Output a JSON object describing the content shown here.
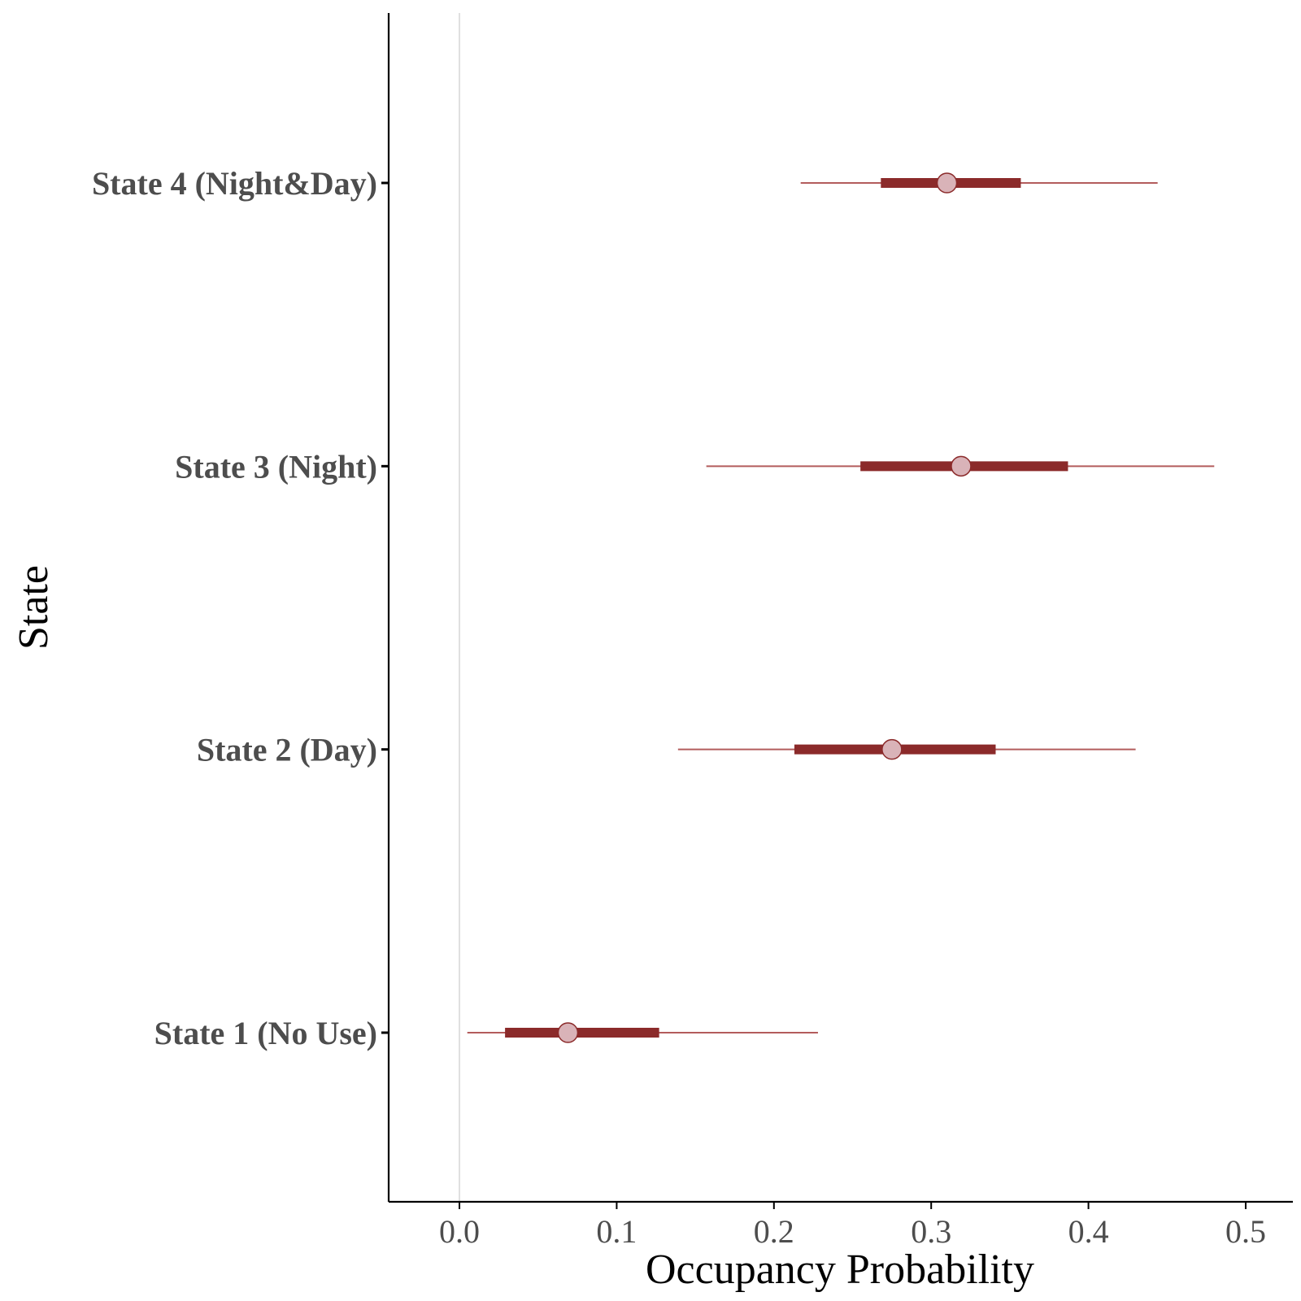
{
  "chart_data": {
    "type": "interval",
    "xlabel": "Occupancy Probability",
    "ylabel": "State",
    "xlim": [
      -0.045,
      0.53
    ],
    "xticks": [
      0.0,
      0.1,
      0.2,
      0.3,
      0.4,
      0.5
    ],
    "xtick_labels": [
      "0.0",
      "0.1",
      "0.2",
      "0.3",
      "0.4",
      "0.5"
    ],
    "reference_line_x": 0.0,
    "grid": false,
    "categories": [
      "State 4 (Night&Day)",
      "State 3 (Night)",
      "State 2 (Day)",
      "State 1 (No Use)"
    ],
    "series": [
      {
        "category": "State 4 (Night&Day)",
        "estimate": 0.31,
        "inner_low": 0.268,
        "inner_high": 0.357,
        "outer_low": 0.217,
        "outer_high": 0.444
      },
      {
        "category": "State 3 (Night)",
        "estimate": 0.319,
        "inner_low": 0.255,
        "inner_high": 0.387,
        "outer_low": 0.157,
        "outer_high": 0.48
      },
      {
        "category": "State 2 (Day)",
        "estimate": 0.275,
        "inner_low": 0.213,
        "inner_high": 0.341,
        "outer_low": 0.139,
        "outer_high": 0.43
      },
      {
        "category": "State 1 (No Use)",
        "estimate": 0.069,
        "inner_low": 0.029,
        "inner_high": 0.127,
        "outer_low": 0.005,
        "outer_high": 0.228
      }
    ],
    "colors": {
      "interval": "#8b2a2a",
      "outer_line": "#b35c5c",
      "point_fill": "#d9b3b8",
      "point_stroke": "#8b2a2a",
      "axis": "#000000",
      "reference_line": "#e0e0e0"
    }
  }
}
